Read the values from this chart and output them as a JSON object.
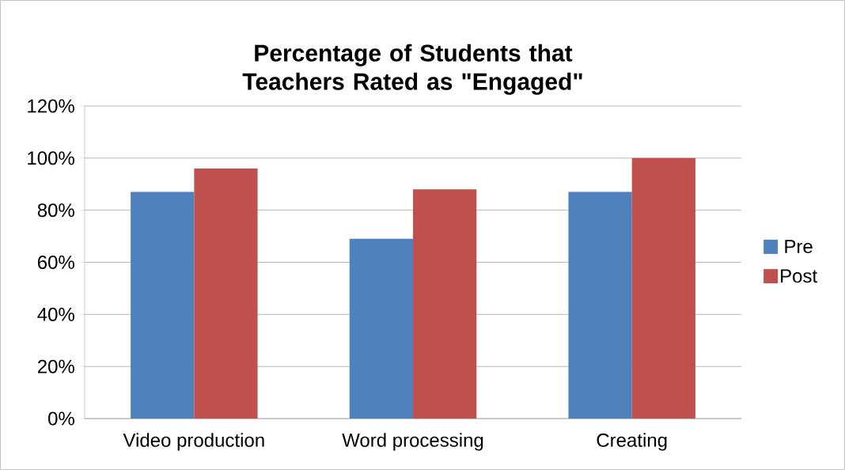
{
  "chart_data": {
    "type": "bar",
    "title": "Percentage of Students that Teachers Rated as \"Engaged\"",
    "categories": [
      "Video production",
      "Word processing",
      "Creating"
    ],
    "series": [
      {
        "name": "Pre",
        "color": "#4f81bd",
        "values": [
          87,
          69,
          87
        ]
      },
      {
        "name": "Post",
        "color": "#c0504d",
        "values": [
          96,
          88,
          100
        ]
      }
    ],
    "ylim": [
      0,
      120
    ],
    "yticks": [
      {
        "value": 0,
        "label": "0%"
      },
      {
        "value": 20,
        "label": "20%"
      },
      {
        "value": 40,
        "label": "40%"
      },
      {
        "value": 60,
        "label": "60%"
      },
      {
        "value": 80,
        "label": "80%"
      },
      {
        "value": 100,
        "label": "100%"
      },
      {
        "value": 120,
        "label": "120%"
      }
    ],
    "grid": "y",
    "legend": "right"
  }
}
